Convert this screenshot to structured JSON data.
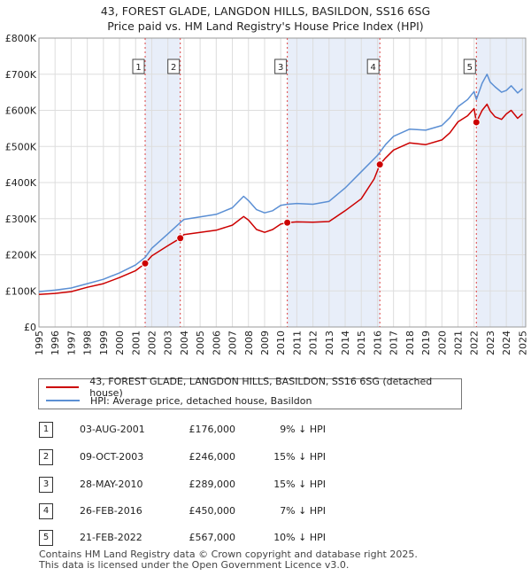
{
  "header": {
    "title_line1": "43, FOREST GLADE, LANGDON HILLS, BASILDON, SS16 6SG",
    "title_line2": "Price paid vs. HM Land Registry's House Price Index (HPI)"
  },
  "legend": {
    "property_label": "43, FOREST GLADE, LANGDON HILLS, BASILDON, SS16 6SG (detached house)",
    "hpi_label": "HPI: Average price, detached house, Basildon",
    "property_color": "#cc0000",
    "hpi_color": "#5b8fd4"
  },
  "transactions": [
    {
      "num": "1",
      "date": "03-AUG-2001",
      "price": "£176,000",
      "pct": "9% ↓ HPI"
    },
    {
      "num": "2",
      "date": "09-OCT-2003",
      "price": "£246,000",
      "pct": "15% ↓ HPI"
    },
    {
      "num": "3",
      "date": "28-MAY-2010",
      "price": "£289,000",
      "pct": "15% ↓ HPI"
    },
    {
      "num": "4",
      "date": "26-FEB-2016",
      "price": "£450,000",
      "pct": "7% ↓ HPI"
    },
    {
      "num": "5",
      "date": "21-FEB-2022",
      "price": "£567,000",
      "pct": "10% ↓ HPI"
    }
  ],
  "footer": {
    "line1": "Contains HM Land Registry data © Crown copyright and database right 2025.",
    "line2": "This data is licensed under the Open Government Licence v3.0."
  },
  "chart_data": {
    "type": "line",
    "title": "43, FOREST GLADE, LANGDON HILLS, BASILDON, SS16 6SG — Price paid vs. HM Land Registry's House Price Index (HPI)",
    "xlabel": "",
    "ylabel": "",
    "xlim": [
      1995,
      2025.2
    ],
    "ylim": [
      0,
      800000
    ],
    "x_ticks": [
      1995,
      1996,
      1997,
      1998,
      1999,
      2000,
      2001,
      2002,
      2003,
      2004,
      2005,
      2006,
      2007,
      2008,
      2009,
      2010,
      2011,
      2012,
      2013,
      2014,
      2015,
      2016,
      2017,
      2018,
      2019,
      2020,
      2021,
      2022,
      2023,
      2024,
      2025
    ],
    "x_tick_labels": [
      "1995",
      "1996",
      "1997",
      "1998",
      "1999",
      "2000",
      "2001",
      "2002",
      "2003",
      "2004",
      "2005",
      "2006",
      "2007",
      "2008",
      "2009",
      "2010",
      "2011",
      "2012",
      "2013",
      "2014",
      "2015",
      "2016",
      "2017",
      "2018",
      "2019",
      "2020",
      "2021",
      "2022",
      "2023",
      "2024",
      "2025"
    ],
    "y_ticks": [
      0,
      100000,
      200000,
      300000,
      400000,
      500000,
      600000,
      700000,
      800000
    ],
    "y_tick_labels": [
      "£0",
      "£100K",
      "£200K",
      "£300K",
      "£400K",
      "£500K",
      "£600K",
      "£700K",
      "£800K"
    ],
    "grid": true,
    "legend_position": "bottom",
    "shaded_periods": [
      [
        2001.59,
        2003.77
      ],
      [
        2010.41,
        2016.15
      ],
      [
        2022.14,
        2025.2
      ]
    ],
    "series": [
      {
        "name": "HPI: Average price, detached house, Basildon",
        "color": "#5b8fd4",
        "x": [
          1995,
          1996,
          1997,
          1998,
          1999,
          2000,
          2001,
          2001.59,
          2002,
          2003,
          2003.77,
          2004,
          2005,
          2006,
          2007,
          2007.7,
          2008,
          2008.5,
          2009,
          2009.5,
          2010,
          2010.41,
          2011,
          2012,
          2013,
          2014,
          2015,
          2016,
          2016.15,
          2016.5,
          2017,
          2018,
          2019,
          2020,
          2020.5,
          2021,
          2021.6,
          2022,
          2022.14,
          2022.5,
          2022.8,
          2023,
          2023.3,
          2023.7,
          2024,
          2024.3,
          2024.7,
          2025
        ],
        "y": [
          98000,
          102000,
          108000,
          120000,
          132000,
          150000,
          172000,
          193000,
          218000,
          258000,
          289000,
          298000,
          305000,
          312000,
          330000,
          362000,
          350000,
          325000,
          316000,
          322000,
          337000,
          340000,
          342000,
          340000,
          348000,
          385000,
          430000,
          475000,
          484000,
          505000,
          528000,
          548000,
          545000,
          558000,
          580000,
          610000,
          630000,
          652000,
          630000,
          675000,
          700000,
          678000,
          665000,
          650000,
          655000,
          668000,
          648000,
          660000
        ]
      },
      {
        "name": "43, FOREST GLADE, LANGDON HILLS, BASILDON, SS16 6SG (detached house)",
        "color": "#cc0000",
        "x": [
          1995,
          1996,
          1997,
          1998,
          1999,
          2000,
          2001,
          2001.59,
          2002,
          2003,
          2003.77,
          2004,
          2005,
          2006,
          2007,
          2007.7,
          2008,
          2008.5,
          2009,
          2009.5,
          2010,
          2010.41,
          2011,
          2012,
          2013,
          2014,
          2015,
          2015.8,
          2016.15,
          2016.5,
          2017,
          2018,
          2019,
          2020,
          2020.5,
          2021,
          2021.6,
          2022,
          2022.14,
          2022.5,
          2022.8,
          2023,
          2023.3,
          2023.7,
          2024,
          2024.3,
          2024.7,
          2025
        ],
        "y": [
          90000,
          93000,
          98000,
          110000,
          120000,
          137000,
          156000,
          176000,
          197000,
          225000,
          246000,
          256000,
          262000,
          268000,
          282000,
          306000,
          296000,
          270000,
          262000,
          270000,
          285000,
          289000,
          291000,
          290000,
          292000,
          322000,
          355000,
          410000,
          450000,
          468000,
          490000,
          510000,
          505000,
          518000,
          538000,
          568000,
          585000,
          605000,
          567000,
          600000,
          617000,
          598000,
          582000,
          575000,
          590000,
          600000,
          578000,
          590000
        ]
      }
    ],
    "markers": [
      {
        "label": "1",
        "x": 2001.59,
        "y": 176000
      },
      {
        "label": "2",
        "x": 2003.77,
        "y": 246000
      },
      {
        "label": "3",
        "x": 2010.41,
        "y": 289000
      },
      {
        "label": "4",
        "x": 2016.15,
        "y": 450000
      },
      {
        "label": "5",
        "x": 2022.14,
        "y": 567000
      }
    ]
  }
}
